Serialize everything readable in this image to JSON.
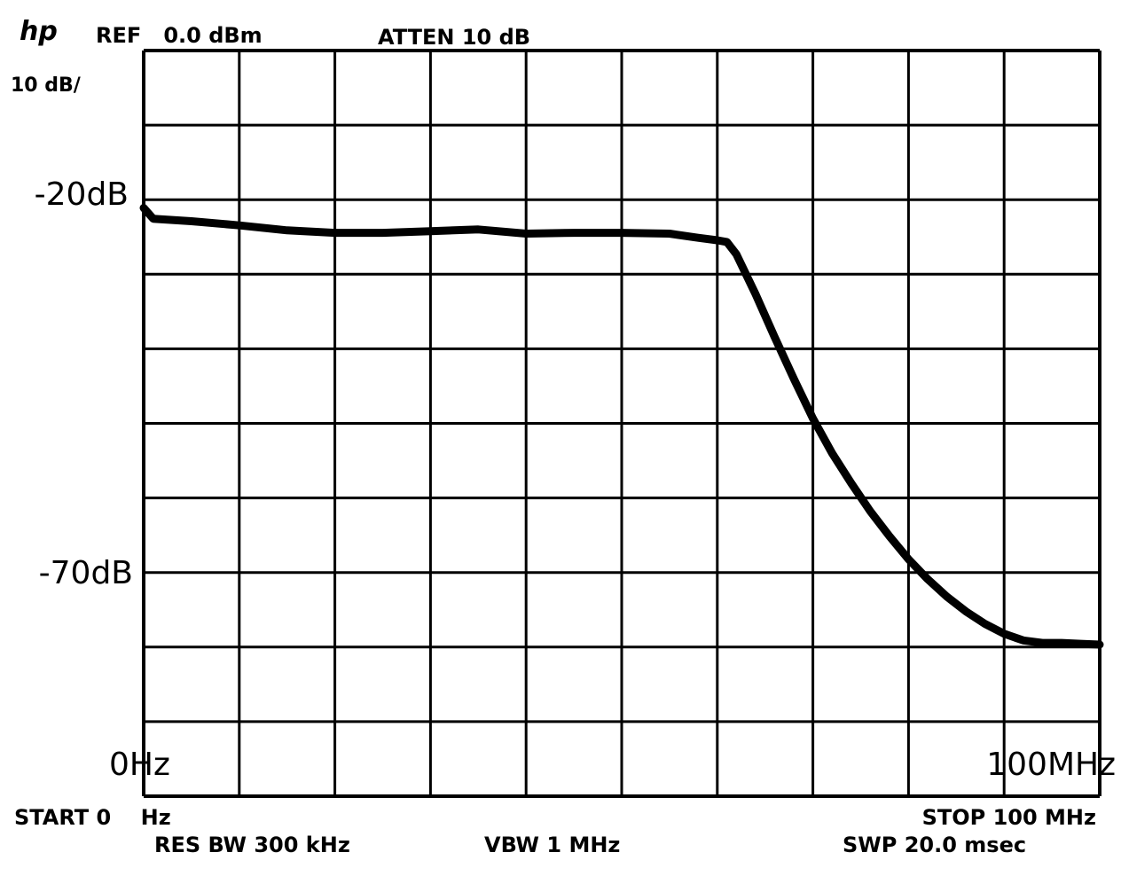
{
  "header": {
    "logo": "hp",
    "ref": "REF   0.0 dBm",
    "atten": "ATTEN 10 dB",
    "scale": "10 dB/"
  },
  "footer": {
    "start": "START 0    Hz",
    "stop": "STOP 100 MHz",
    "res_bw": "RES BW 300 kHz",
    "vbw": "VBW 1 MHz",
    "swp": "SWP 20.0 msec"
  },
  "chart_data": {
    "type": "line",
    "title": "",
    "xlabel": "",
    "ylabel": "",
    "x_tick_labels": [
      "0Hz",
      "100MHz"
    ],
    "y_tick_labels": [
      "-20dB",
      "-70dB"
    ],
    "xlim": [
      0,
      100
    ],
    "x_unit": "MHz",
    "ylim": [
      -90,
      0
    ],
    "grid": true,
    "grid_divisions": {
      "x": 10,
      "y": 10
    },
    "series": [
      {
        "x": [
          0,
          1,
          5,
          10,
          15,
          20,
          25,
          30,
          35,
          40,
          45,
          50,
          55,
          58,
          60,
          61,
          62,
          64,
          66,
          68,
          70,
          72,
          74,
          76,
          78,
          80,
          82,
          84,
          86,
          88,
          90,
          92,
          94,
          96,
          98,
          100
        ],
        "y": [
          -19.0,
          -20.3,
          -20.6,
          -21.1,
          -21.7,
          -22.0,
          -22.0,
          -21.8,
          -21.6,
          -22.1,
          -22.0,
          -22.0,
          -22.1,
          -22.6,
          -22.9,
          -23.1,
          -24.6,
          -29.4,
          -34.6,
          -39.6,
          -44.4,
          -48.6,
          -52.2,
          -55.6,
          -58.6,
          -61.4,
          -63.8,
          -65.9,
          -67.7,
          -69.2,
          -70.4,
          -71.2,
          -71.5,
          -71.5,
          -71.6,
          -71.7
        ]
      }
    ]
  }
}
